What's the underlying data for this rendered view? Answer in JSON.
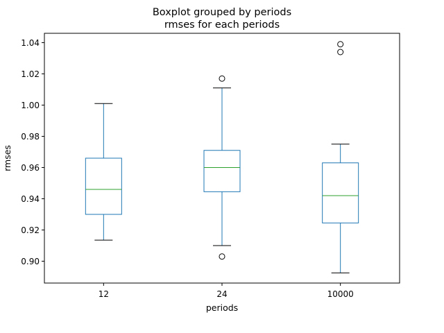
{
  "chart_data": {
    "type": "boxplot",
    "title": "Boxplot grouped by periods",
    "subtitle": "rmses for each periods",
    "xlabel": "periods",
    "ylabel": "rmses",
    "ylim": [
      0.886,
      1.046
    ],
    "yticks": [
      "0.90",
      "0.92",
      "0.94",
      "0.96",
      "0.98",
      "1.00",
      "1.02",
      "1.04"
    ],
    "categories": [
      "12",
      "24",
      "10000"
    ],
    "boxes": [
      {
        "category": "12",
        "whisker_low": 0.9135,
        "q1": 0.93,
        "median": 0.946,
        "q3": 0.966,
        "whisker_high": 1.001,
        "outliers": []
      },
      {
        "category": "24",
        "whisker_low": 0.91,
        "q1": 0.9445,
        "median": 0.96,
        "q3": 0.971,
        "whisker_high": 1.011,
        "outliers": [
          0.903,
          1.017
        ]
      },
      {
        "category": "10000",
        "whisker_low": 0.8925,
        "q1": 0.9245,
        "median": 0.942,
        "q3": 0.963,
        "whisker_high": 0.975,
        "outliers": [
          1.034,
          1.039
        ]
      }
    ],
    "grid": false,
    "colors": {
      "box": "#1f77b4",
      "median": "#2ca02c",
      "whisker_cap": "#000000",
      "outlier": "#000000"
    }
  }
}
